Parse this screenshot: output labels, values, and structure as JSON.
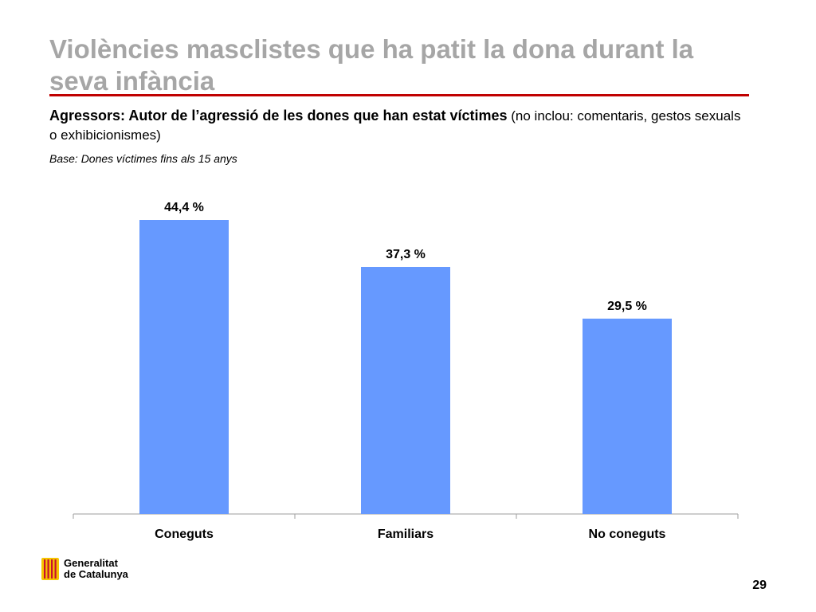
{
  "slide": {
    "title": "Violències masclistes que ha patit la dona durant la seva infància",
    "subtitle_bold": "Agressors:  Autor de l’agressió de les dones que han estat víctimes",
    "subtitle_normal": "(no inclou: comentaris, gestos sexuals o exhibicionismes)",
    "base_note": "Base: Dones víctimes fins als 15 anys",
    "page_number": "29"
  },
  "logo": {
    "line1": "Generalitat",
    "line2": "de Catalunya"
  },
  "colors": {
    "bar": "#6699ff",
    "title": "#a6a6a6",
    "rule": "#c00000"
  },
  "chart_data": {
    "type": "bar",
    "categories": [
      "Coneguts",
      "Familiars",
      "No coneguts"
    ],
    "values": [
      44.4,
      37.3,
      29.5
    ],
    "data_labels": [
      "44,4 %",
      "37,3 %",
      "29,5 %"
    ],
    "ylim": [
      0,
      50
    ],
    "grid": false
  }
}
